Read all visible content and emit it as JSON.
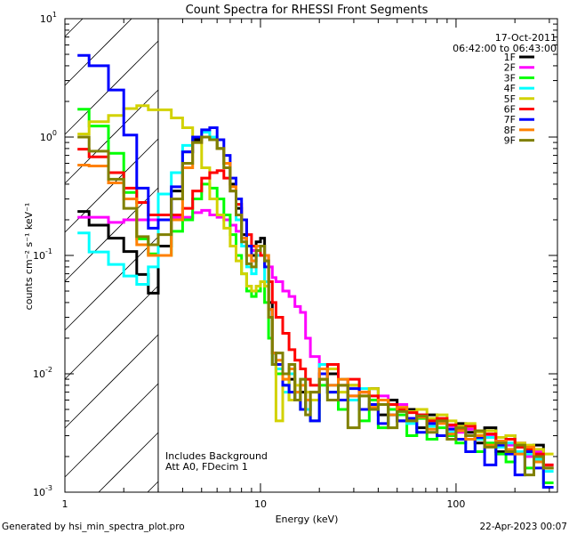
{
  "chart_data": {
    "type": "line",
    "style": "histogram-step",
    "title": "Count Spectra for RHESSI Front Segments",
    "xlabel": "Energy (keV)",
    "ylabel": "counts cm⁻² s⁻¹ keV⁻¹",
    "xscale": "log",
    "yscale": "log",
    "xlim": [
      1,
      330
    ],
    "ylim": [
      0.001,
      10
    ],
    "x_tick_labels": [
      {
        "value": 1,
        "label": "1"
      },
      {
        "value": 10,
        "label": "10"
      },
      {
        "value": 100,
        "label": "100"
      }
    ],
    "y_tick_labels": [
      {
        "value": 0.001,
        "base": "10",
        "exp": "-3"
      },
      {
        "value": 0.01,
        "base": "10",
        "exp": "-2"
      },
      {
        "value": 0.1,
        "base": "10",
        "exp": "-1"
      },
      {
        "value": 1,
        "base": "10",
        "exp": "0"
      },
      {
        "value": 10,
        "base": "10",
        "exp": "1"
      }
    ],
    "date": "17-Oct-2011",
    "time_range": "06:42:00 to 06:43:00",
    "annotations": [
      "Includes Background",
      "Att A0, FDecim 1"
    ],
    "hatched_region_max_energy": 3,
    "legend_position": "top-right",
    "energy_bin_edges": [
      1.16,
      1.33,
      1.67,
      2,
      2.33,
      2.67,
      3,
      3.5,
      4,
      4.5,
      5,
      5.5,
      6,
      6.5,
      7,
      7.5,
      8,
      8.5,
      9,
      9.5,
      10,
      10.5,
      11,
      11.5,
      12,
      13,
      14,
      15,
      16,
      17,
      18,
      20,
      22,
      25,
      28,
      32,
      36,
      40,
      45,
      50,
      56,
      63,
      71,
      80,
      90,
      100,
      112,
      125,
      140,
      160,
      180,
      200,
      225,
      250,
      280,
      315
    ],
    "series": [
      {
        "name": "1F",
        "color": "#000000",
        "values": [
          0.235,
          0.18,
          0.14,
          0.108,
          0.069,
          0.048,
          0.12,
          0.35,
          0.75,
          0.95,
          1.0,
          0.95,
          0.8,
          0.6,
          0.4,
          0.25,
          0.15,
          0.1,
          0.1,
          0.13,
          0.14,
          0.1,
          0.04,
          0.015,
          0.012,
          0.008,
          0.009,
          0.006,
          0.007,
          0.005,
          0.006,
          0.009,
          0.01,
          0.006,
          0.008,
          0.005,
          0.0075,
          0.0045,
          0.006,
          0.004,
          0.005,
          0.0035,
          0.0045,
          0.004,
          0.003,
          0.0038,
          0.0032,
          0.0026,
          0.0035,
          0.0022,
          0.003,
          0.0024,
          0.002,
          0.0025,
          0.0016
        ]
      },
      {
        "name": "2F",
        "color": "#ff00ff",
        "values": [
          0.21,
          0.21,
          0.19,
          0.2,
          0.2,
          0.2,
          0.2,
          0.21,
          0.21,
          0.23,
          0.24,
          0.22,
          0.21,
          0.2,
          0.18,
          0.16,
          0.14,
          0.12,
          0.11,
          0.1,
          0.1,
          0.09,
          0.08,
          0.065,
          0.06,
          0.05,
          0.045,
          0.037,
          0.033,
          0.02,
          0.014,
          0.01,
          0.008,
          0.009,
          0.0065,
          0.007,
          0.0055,
          0.0065,
          0.005,
          0.0055,
          0.0042,
          0.0045,
          0.0038,
          0.004,
          0.0036,
          0.0032,
          0.0034,
          0.0028,
          0.003,
          0.0027,
          0.0025,
          0.0026,
          0.002,
          0.0022,
          0.0017
        ]
      },
      {
        "name": "3F",
        "color": "#00ff00",
        "values": [
          1.72,
          1.24,
          0.73,
          0.34,
          0.138,
          0.103,
          0.1,
          0.16,
          0.2,
          0.3,
          0.4,
          0.37,
          0.3,
          0.22,
          0.15,
          0.1,
          0.07,
          0.05,
          0.045,
          0.05,
          0.06,
          0.04,
          0.02,
          0.012,
          0.01,
          0.008,
          0.006,
          0.007,
          0.005,
          0.006,
          0.004,
          0.008,
          0.007,
          0.005,
          0.006,
          0.004,
          0.006,
          0.0035,
          0.005,
          0.0045,
          0.003,
          0.0042,
          0.0028,
          0.0035,
          0.003,
          0.0026,
          0.003,
          0.0022,
          0.0026,
          0.0021,
          0.0018,
          0.0022,
          0.0016,
          0.0019,
          0.0012
        ]
      },
      {
        "name": "4F",
        "color": "#00ffff",
        "values": [
          0.155,
          0.107,
          0.084,
          0.067,
          0.057,
          0.08,
          0.33,
          0.5,
          0.85,
          1.0,
          1.1,
          1.0,
          0.8,
          0.55,
          0.35,
          0.2,
          0.12,
          0.08,
          0.07,
          0.1,
          0.12,
          0.06,
          0.03,
          0.012,
          0.011,
          0.007,
          0.01,
          0.006,
          0.009,
          0.005,
          0.006,
          0.012,
          0.008,
          0.009,
          0.006,
          0.0075,
          0.0055,
          0.006,
          0.0045,
          0.005,
          0.0038,
          0.0044,
          0.0036,
          0.0039,
          0.0032,
          0.0035,
          0.003,
          0.0028,
          0.0029,
          0.0024,
          0.0026,
          0.0022,
          0.0021,
          0.0019,
          0.0015
        ]
      },
      {
        "name": "5F",
        "color": "#d2d200",
        "values": [
          1.06,
          1.35,
          1.52,
          1.74,
          1.84,
          1.7,
          1.7,
          1.45,
          1.2,
          1.0,
          0.55,
          0.3,
          0.22,
          0.17,
          0.12,
          0.09,
          0.07,
          0.055,
          0.05,
          0.055,
          0.06,
          0.055,
          0.03,
          0.015,
          0.004,
          0.009,
          0.006,
          0.008,
          0.005,
          0.007,
          0.006,
          0.009,
          0.011,
          0.007,
          0.008,
          0.0065,
          0.0075,
          0.006,
          0.0055,
          0.0052,
          0.0048,
          0.005,
          0.0042,
          0.0045,
          0.004,
          0.0036,
          0.0038,
          0.0032,
          0.0033,
          0.0029,
          0.003,
          0.0026,
          0.0025,
          0.0023,
          0.0021
        ]
      },
      {
        "name": "6F",
        "color": "#ff0000",
        "values": [
          0.79,
          0.68,
          0.5,
          0.37,
          0.28,
          0.22,
          0.22,
          0.22,
          0.25,
          0.35,
          0.45,
          0.5,
          0.52,
          0.45,
          0.35,
          0.27,
          0.2,
          0.15,
          0.12,
          0.12,
          0.1,
          0.09,
          0.06,
          0.04,
          0.03,
          0.022,
          0.016,
          0.013,
          0.011,
          0.009,
          0.008,
          0.01,
          0.012,
          0.008,
          0.009,
          0.007,
          0.0065,
          0.006,
          0.0055,
          0.005,
          0.0047,
          0.0045,
          0.004,
          0.0042,
          0.0037,
          0.0034,
          0.0036,
          0.003,
          0.0031,
          0.0027,
          0.0028,
          0.0024,
          0.0023,
          0.0021,
          0.0017
        ]
      },
      {
        "name": "7F",
        "color": "#0000ff",
        "values": [
          4.9,
          4.0,
          2.5,
          1.04,
          0.37,
          0.17,
          0.2,
          0.38,
          0.75,
          1.0,
          1.15,
          1.2,
          0.95,
          0.7,
          0.45,
          0.3,
          0.2,
          0.12,
          0.09,
          0.11,
          0.12,
          0.08,
          0.035,
          0.015,
          0.012,
          0.008,
          0.007,
          0.006,
          0.005,
          0.006,
          0.004,
          0.01,
          0.007,
          0.006,
          0.0075,
          0.005,
          0.0055,
          0.0038,
          0.0045,
          0.004,
          0.0042,
          0.0032,
          0.0038,
          0.003,
          0.0034,
          0.0028,
          0.0022,
          0.0029,
          0.0017,
          0.0025,
          0.0021,
          0.0014,
          0.0022,
          0.0016,
          0.0011
        ]
      },
      {
        "name": "8F",
        "color": "#ff8000",
        "values": [
          0.58,
          0.57,
          0.41,
          0.3,
          0.123,
          0.1,
          0.1,
          0.2,
          0.55,
          0.9,
          1.0,
          0.95,
          0.8,
          0.6,
          0.38,
          0.22,
          0.14,
          0.1,
          0.09,
          0.12,
          0.12,
          0.1,
          0.035,
          0.015,
          0.013,
          0.009,
          0.011,
          0.007,
          0.008,
          0.006,
          0.007,
          0.011,
          0.008,
          0.009,
          0.0065,
          0.007,
          0.0052,
          0.006,
          0.0045,
          0.0052,
          0.004,
          0.0043,
          0.0034,
          0.0038,
          0.0031,
          0.0033,
          0.0028,
          0.003,
          0.0025,
          0.0027,
          0.0023,
          0.0021,
          0.0024,
          0.0018,
          0.0016
        ]
      },
      {
        "name": "9F",
        "color": "#808000",
        "values": [
          1.0,
          0.76,
          0.44,
          0.25,
          0.144,
          0.123,
          0.15,
          0.3,
          0.6,
          0.9,
          1.0,
          0.95,
          0.8,
          0.55,
          0.35,
          0.22,
          0.13,
          0.085,
          0.08,
          0.11,
          0.12,
          0.09,
          0.03,
          0.012,
          0.015,
          0.01,
          0.012,
          0.006,
          0.009,
          0.0045,
          0.007,
          0.009,
          0.006,
          0.008,
          0.0035,
          0.0065,
          0.005,
          0.0055,
          0.0035,
          0.0048,
          0.004,
          0.0044,
          0.0032,
          0.004,
          0.0028,
          0.0035,
          0.003,
          0.0033,
          0.0024,
          0.0026,
          0.0022,
          0.0025,
          0.0014,
          0.002,
          0.0016
        ]
      }
    ]
  },
  "footer": {
    "generated_by": "Generated by hsi_min_spectra_plot.pro",
    "timestamp": "22-Apr-2023 00:07"
  }
}
